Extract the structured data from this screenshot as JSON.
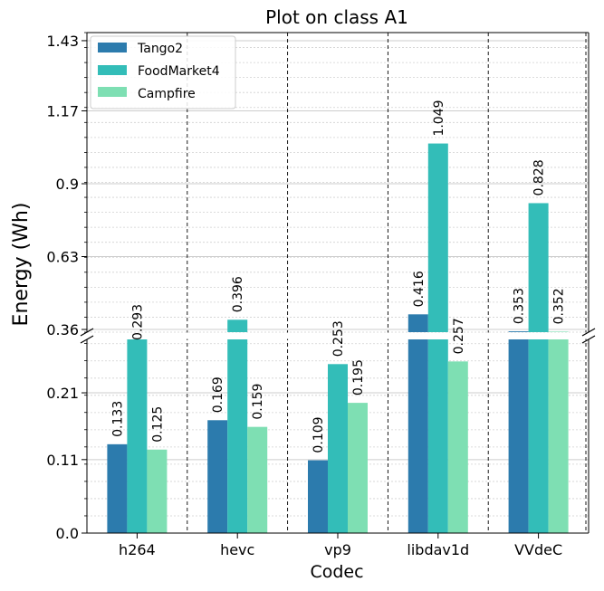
{
  "chart_data": {
    "type": "bar",
    "title": "Plot on class A1",
    "xlabel": "Codec",
    "ylabel": "Energy (Wh)",
    "categories": [
      "h264",
      "hevc",
      "vp9",
      "libdav1d",
      "VVdeC"
    ],
    "series": [
      {
        "name": "Tango2",
        "color": "#2c7bad",
        "values": [
          0.133,
          0.169,
          0.109,
          0.416,
          0.353
        ],
        "labels": [
          "0.133",
          "0.169",
          "0.109",
          "0.416",
          "0.353"
        ]
      },
      {
        "name": "FoodMarket4",
        "color": "#33bdb8",
        "values": [
          0.293,
          0.396,
          0.253,
          1.049,
          0.828
        ],
        "labels": [
          "0.293",
          "0.396",
          "0.253",
          "1.049",
          "0.828"
        ]
      },
      {
        "name": "Campfire",
        "color": "#7edfb3",
        "values": [
          0.125,
          0.159,
          0.195,
          0.257,
          0.352
        ],
        "labels": [
          "0.125",
          "0.159",
          "0.195",
          "0.257",
          "0.352"
        ]
      }
    ],
    "broken_axis": {
      "lower_ylim": [
        0.0,
        0.29
      ],
      "upper_ylim": [
        0.35,
        1.46
      ],
      "lower_ticks": [
        "0.0",
        "0.11",
        "0.21"
      ],
      "upper_ticks": [
        "0.36",
        "0.63",
        "0.9",
        "1.17",
        "1.43"
      ]
    },
    "grid": true,
    "legend_position": "top-left"
  }
}
